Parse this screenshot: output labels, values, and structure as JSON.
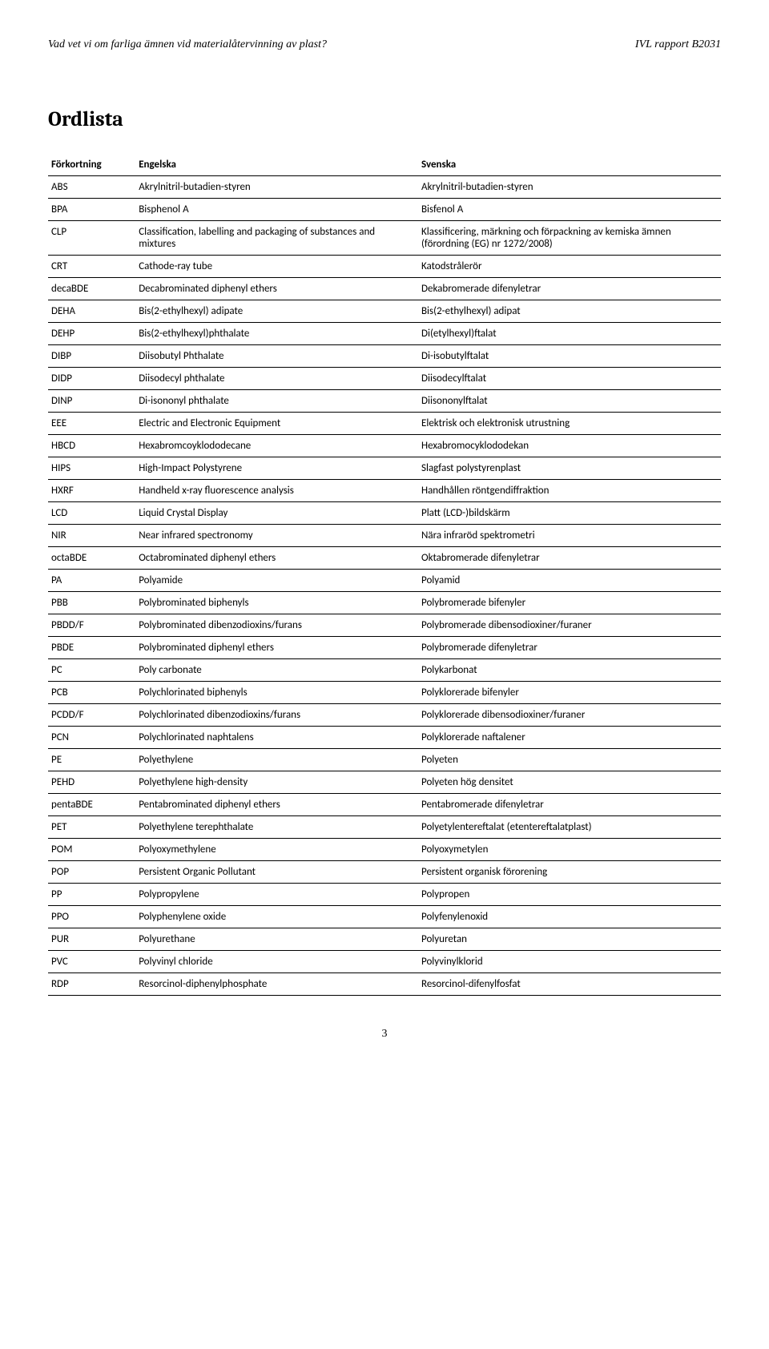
{
  "document": {
    "header_left": "Vad vet vi om farliga ämnen vid materialåtervinning av plast?",
    "header_right": "IVL rapport B2031",
    "title": "Ordlista",
    "page_number": "3",
    "columns": [
      "Förkortning",
      "Engelska",
      "Svenska"
    ],
    "rows": [
      [
        "ABS",
        "Akrylnitril-butadien-styren",
        "Akrylnitril-butadien-styren"
      ],
      [
        "BPA",
        "Bisphenol A",
        "Bisfenol A"
      ],
      [
        "CLP",
        "Classification, labelling and packaging of substances and mixtures",
        "Klassificering, märkning och förpackning av kemiska ämnen (förordning (EG) nr 1272/2008)"
      ],
      [
        "CRT",
        "Cathode-ray tube",
        "Katodstrålerör"
      ],
      [
        "decaBDE",
        "Decabrominated diphenyl ethers",
        "Dekabromerade difenyletrar"
      ],
      [
        "DEHA",
        "Bis(2-ethylhexyl) adipate",
        "Bis(2-ethylhexyl) adipat"
      ],
      [
        "DEHP",
        "Bis(2-ethylhexyl)phthalate",
        "Di(etylhexyl)ftalat"
      ],
      [
        "DIBP",
        "Diisobutyl Phthalate",
        "Di-isobutylftalat"
      ],
      [
        "DIDP",
        "Diisodecyl phthalate",
        "Diisodecylftalat"
      ],
      [
        "DINP",
        "Di-isononyl phthalate",
        "Diisononylftalat"
      ],
      [
        "EEE",
        "Electric and Electronic Equipment",
        "Elektrisk och elektronisk utrustning"
      ],
      [
        "HBCD",
        "Hexabromcoyklododecane",
        "Hexabromocyklododekan"
      ],
      [
        "HIPS",
        "High-Impact Polystyrene",
        "Slagfast polystyrenplast"
      ],
      [
        "HXRF",
        "Handheld x-ray fluorescence analysis",
        "Handhållen röntgendiffraktion"
      ],
      [
        "LCD",
        "Liquid Crystal Display",
        "Platt (LCD-)bildskärm"
      ],
      [
        "NIR",
        "Near infrared spectronomy",
        "Nära infraröd spektrometri"
      ],
      [
        "octaBDE",
        "Octabrominated diphenyl ethers",
        "Oktabromerade difenyletrar"
      ],
      [
        "PA",
        "Polyamide",
        "Polyamid"
      ],
      [
        "PBB",
        "Polybrominated biphenyls",
        "Polybromerade bifenyler"
      ],
      [
        "PBDD/F",
        "Polybrominated dibenzodioxins/furans",
        "Polybromerade dibensodioxiner/furaner"
      ],
      [
        "PBDE",
        "Polybrominated diphenyl ethers",
        "Polybromerade difenyletrar"
      ],
      [
        "PC",
        "Poly carbonate",
        "Polykarbonat"
      ],
      [
        "PCB",
        "Polychlorinated biphenyls",
        "Polyklorerade bifenyler"
      ],
      [
        "PCDD/F",
        "Polychlorinated dibenzodioxins/furans",
        "Polyklorerade dibensodioxiner/furaner"
      ],
      [
        "PCN",
        "Polychlorinated naphtalens",
        "Polyklorerade naftalener"
      ],
      [
        "PE",
        "Polyethylene",
        "Polyeten"
      ],
      [
        "PEHD",
        "Polyethylene high-density",
        "Polyeten hög densitet"
      ],
      [
        "pentaBDE",
        "Pentabrominated diphenyl ethers",
        "Pentabromerade difenyletrar"
      ],
      [
        "PET",
        "Polyethylene terephthalate",
        "Polyetylentereftalat (etentereftalatplast)"
      ],
      [
        "POM",
        "Polyoxymethylene",
        "Polyoxymetylen"
      ],
      [
        "POP",
        "Persistent Organic Pollutant",
        "Persistent organisk förorening"
      ],
      [
        "PP",
        "Polypropylene",
        "Polypropen"
      ],
      [
        "PPO",
        "Polyphenylene oxide",
        "Polyfenylenoxid"
      ],
      [
        "PUR",
        "Polyurethane",
        "Polyuretan"
      ],
      [
        "PVC",
        "Polyvinyl chloride",
        "Polyvinylklorid"
      ],
      [
        "RDP",
        "Resorcinol-diphenylphosphate",
        "Resorcinol-difenylfosfat"
      ]
    ]
  }
}
